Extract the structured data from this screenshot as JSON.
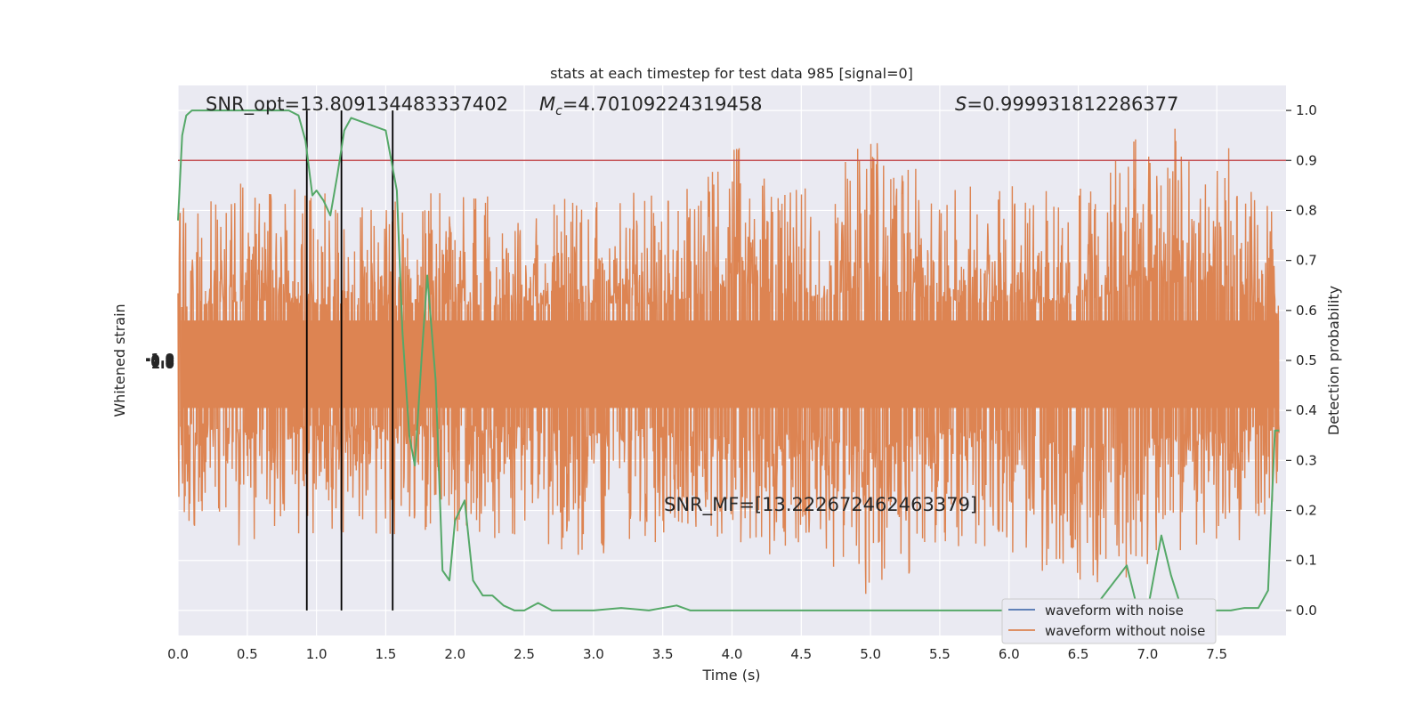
{
  "chart_data": {
    "type": "line",
    "title": "stats at each timestep for test data 985 [signal=0]",
    "xlabel": "Time (s)",
    "ylabel_left": "Whitened strain",
    "ylabel_right": "Detection probability",
    "xlim": [
      0,
      8
    ],
    "ylim_right": [
      -0.05,
      1.05
    ],
    "x_ticks": [
      "0.0",
      "0.5",
      "1.0",
      "1.5",
      "2.0",
      "2.5",
      "3.0",
      "3.5",
      "4.0",
      "4.5",
      "5.0",
      "5.5",
      "6.0",
      "6.5",
      "7.0",
      "7.5"
    ],
    "y_ticks_right": [
      "0.0",
      "0.1",
      "0.2",
      "0.3",
      "0.4",
      "0.5",
      "0.6",
      "0.7",
      "0.8",
      "0.9",
      "1.0"
    ],
    "y_ticks_left": [
      "-1.0",
      "-0.5",
      "0.0",
      "0.5",
      "1.0"
    ],
    "grid": true,
    "legend_position": "bottom-right",
    "threshold": 0.9,
    "vertical_markers": [
      0.93,
      1.18,
      1.55
    ],
    "annotations": {
      "snr_opt": "SNR_opt=13.809134483337402",
      "mc_symbol": "M",
      "mc_sub": "c",
      "mc_value": "=4.70109224319458",
      "s_symbol": "S",
      "s_value": "=0.999931812286377",
      "snr_mf": "SNR_MF=[13.222672462463379]"
    },
    "series": [
      {
        "name": "waveform with noise",
        "color": "#4c72b0",
        "style": "whitened strain trace, hidden behind the orange trace"
      },
      {
        "name": "waveform without noise",
        "color": "#dd8452",
        "style": "dense noisy strain trace filling the plot",
        "envelope": {
          "x": [
            0.0,
            0.5,
            1.0,
            1.5,
            2.0,
            2.5,
            3.0,
            3.5,
            4.0,
            4.5,
            5.0,
            5.5,
            6.0,
            6.5,
            7.0,
            7.5,
            7.95
          ],
          "upper": [
            0.82,
            0.86,
            0.84,
            0.83,
            0.84,
            0.83,
            0.85,
            0.83,
            0.95,
            0.84,
            0.95,
            0.85,
            0.85,
            0.84,
            0.97,
            0.96,
            0.78
          ],
          "lower": [
            0.18,
            0.12,
            0.15,
            0.15,
            0.15,
            0.14,
            0.1,
            0.14,
            0.08,
            0.13,
            0.0,
            0.13,
            0.12,
            0.03,
            0.07,
            0.12,
            0.16
          ]
        }
      },
      {
        "name": "",
        "color": "#55a868",
        "style": "detection probability",
        "x": [
          0.0,
          0.03,
          0.06,
          0.1,
          0.2,
          0.3,
          0.4,
          0.5,
          0.6,
          0.7,
          0.8,
          0.87,
          0.92,
          0.97,
          1.0,
          1.05,
          1.1,
          1.15,
          1.2,
          1.25,
          1.3,
          1.4,
          1.5,
          1.58,
          1.62,
          1.67,
          1.71,
          1.76,
          1.8,
          1.86,
          1.91,
          1.96,
          2.0,
          2.07,
          2.13,
          2.2,
          2.27,
          2.35,
          2.43,
          2.5,
          2.6,
          2.7,
          2.8,
          2.9,
          3.0,
          3.2,
          3.4,
          3.6,
          3.7,
          3.8,
          4.0,
          4.3,
          4.6,
          4.9,
          5.1,
          5.3,
          5.5,
          5.8,
          6.2,
          6.6,
          6.85,
          6.93,
          7.0,
          7.1,
          7.17,
          7.25,
          7.35,
          7.5,
          7.6,
          7.7,
          7.8,
          7.87,
          7.92,
          7.95
        ],
        "y": [
          0.78,
          0.95,
          0.99,
          1.0,
          1.0,
          1.0,
          1.0,
          1.0,
          1.0,
          1.0,
          1.0,
          0.99,
          0.94,
          0.83,
          0.84,
          0.82,
          0.79,
          0.87,
          0.96,
          0.985,
          0.98,
          0.97,
          0.96,
          0.84,
          0.56,
          0.35,
          0.29,
          0.51,
          0.67,
          0.46,
          0.08,
          0.06,
          0.18,
          0.22,
          0.06,
          0.03,
          0.03,
          0.01,
          0.0,
          0.0,
          0.015,
          0.0,
          0.0,
          0.0,
          0.0,
          0.005,
          0.0,
          0.01,
          0.0,
          0.0,
          0.0,
          0.0,
          0.0,
          0.0,
          0.0,
          0.0,
          0.0,
          0.0,
          0.0,
          0.0,
          0.09,
          0.0,
          0.0,
          0.15,
          0.07,
          0.0,
          0.0,
          0.0,
          0.0,
          0.005,
          0.005,
          0.04,
          0.36,
          0.36
        ]
      }
    ]
  }
}
